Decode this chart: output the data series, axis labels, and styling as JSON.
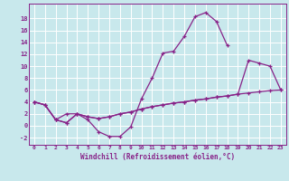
{
  "bg_color": "#c8e8ec",
  "line_color": "#882288",
  "xlabel": "Windchill (Refroidissement éolien,°C)",
  "xlim": [
    -0.5,
    23.5
  ],
  "ylim": [
    -3.2,
    20.5
  ],
  "xticks": [
    0,
    1,
    2,
    3,
    4,
    5,
    6,
    7,
    8,
    9,
    10,
    11,
    12,
    13,
    14,
    15,
    16,
    17,
    18,
    19,
    20,
    21,
    22,
    23
  ],
  "yticks": [
    -2,
    0,
    2,
    4,
    6,
    8,
    10,
    12,
    14,
    16,
    18
  ],
  "line1": [
    [
      0,
      4.0
    ],
    [
      1,
      3.5
    ],
    [
      2,
      1.0
    ],
    [
      3,
      0.5
    ],
    [
      4,
      2.0
    ],
    [
      5,
      1.0
    ],
    [
      6,
      -1.0
    ],
    [
      7,
      -1.8
    ],
    [
      8,
      -1.8
    ],
    [
      9,
      -0.2
    ],
    [
      10,
      4.5
    ],
    [
      11,
      8.0
    ],
    [
      12,
      12.2
    ],
    [
      13,
      12.5
    ],
    [
      14,
      15.0
    ],
    [
      15,
      18.3
    ],
    [
      16,
      19.0
    ],
    [
      17,
      17.5
    ],
    [
      18,
      13.5
    ]
  ],
  "line2": [
    [
      0,
      4.0
    ],
    [
      1,
      3.5
    ],
    [
      2,
      1.0
    ],
    [
      3,
      0.5
    ],
    [
      4,
      2.0
    ],
    [
      5,
      1.5
    ],
    [
      6,
      1.2
    ],
    [
      7,
      1.5
    ],
    [
      8,
      2.0
    ],
    [
      9,
      2.3
    ],
    [
      10,
      2.8
    ],
    [
      11,
      3.2
    ],
    [
      12,
      3.5
    ],
    [
      13,
      3.8
    ],
    [
      14,
      4.0
    ],
    [
      15,
      4.3
    ],
    [
      16,
      4.5
    ],
    [
      17,
      4.8
    ],
    [
      18,
      5.0
    ],
    [
      19,
      5.3
    ],
    [
      20,
      5.5
    ],
    [
      21,
      5.7
    ],
    [
      22,
      5.9
    ],
    [
      23,
      6.0
    ]
  ],
  "line3": [
    [
      0,
      4.0
    ],
    [
      1,
      3.5
    ],
    [
      2,
      1.0
    ],
    [
      3,
      2.0
    ],
    [
      4,
      2.0
    ],
    [
      5,
      1.5
    ],
    [
      6,
      1.2
    ],
    [
      7,
      1.5
    ],
    [
      8,
      2.0
    ],
    [
      9,
      2.3
    ],
    [
      10,
      2.8
    ],
    [
      11,
      3.2
    ],
    [
      12,
      3.5
    ],
    [
      13,
      3.8
    ],
    [
      14,
      4.0
    ],
    [
      15,
      4.3
    ],
    [
      16,
      4.5
    ],
    [
      17,
      4.8
    ],
    [
      18,
      5.0
    ],
    [
      19,
      5.3
    ],
    [
      20,
      11.0
    ],
    [
      21,
      10.5
    ],
    [
      22,
      10.0
    ],
    [
      23,
      6.0
    ]
  ]
}
